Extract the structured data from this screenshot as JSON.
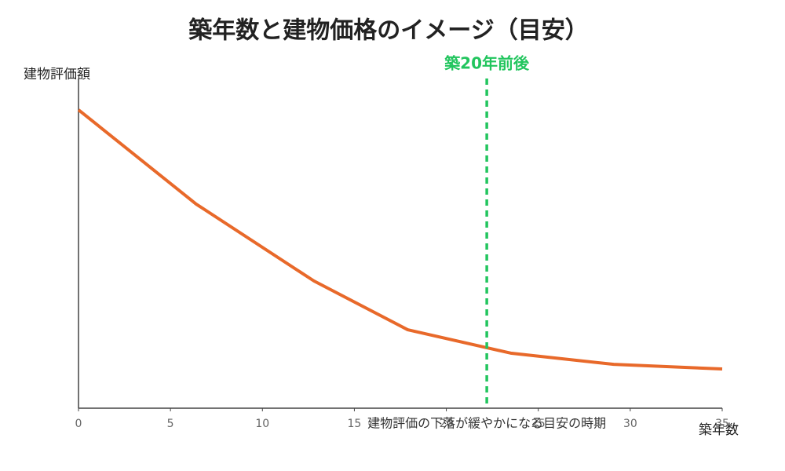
{
  "chart_data": {
    "type": "line",
    "title": "築年数と建物価格のイメージ（目安）",
    "y_label": "建物評価額",
    "x_label": "築年数",
    "x": [
      0,
      6.4,
      12.8,
      17.9,
      23.5,
      29.1,
      35
    ],
    "series": [
      {
        "name": "建物評価額",
        "color": "#e8692a",
        "values": [
          90.5,
          61.9,
          38.6,
          23.8,
          16.7,
          13.3,
          11.9
        ]
      }
    ],
    "xlim": [
      0,
      35
    ],
    "xticks": [
      0,
      5,
      10,
      15,
      20,
      25,
      30,
      35
    ],
    "ylim": [
      0,
      100
    ],
    "vline": {
      "x": 22.2,
      "label": "築20年前後",
      "color": "#22c55e"
    },
    "annotation": "建物評価の下落が緩やかになる目安の時期"
  }
}
